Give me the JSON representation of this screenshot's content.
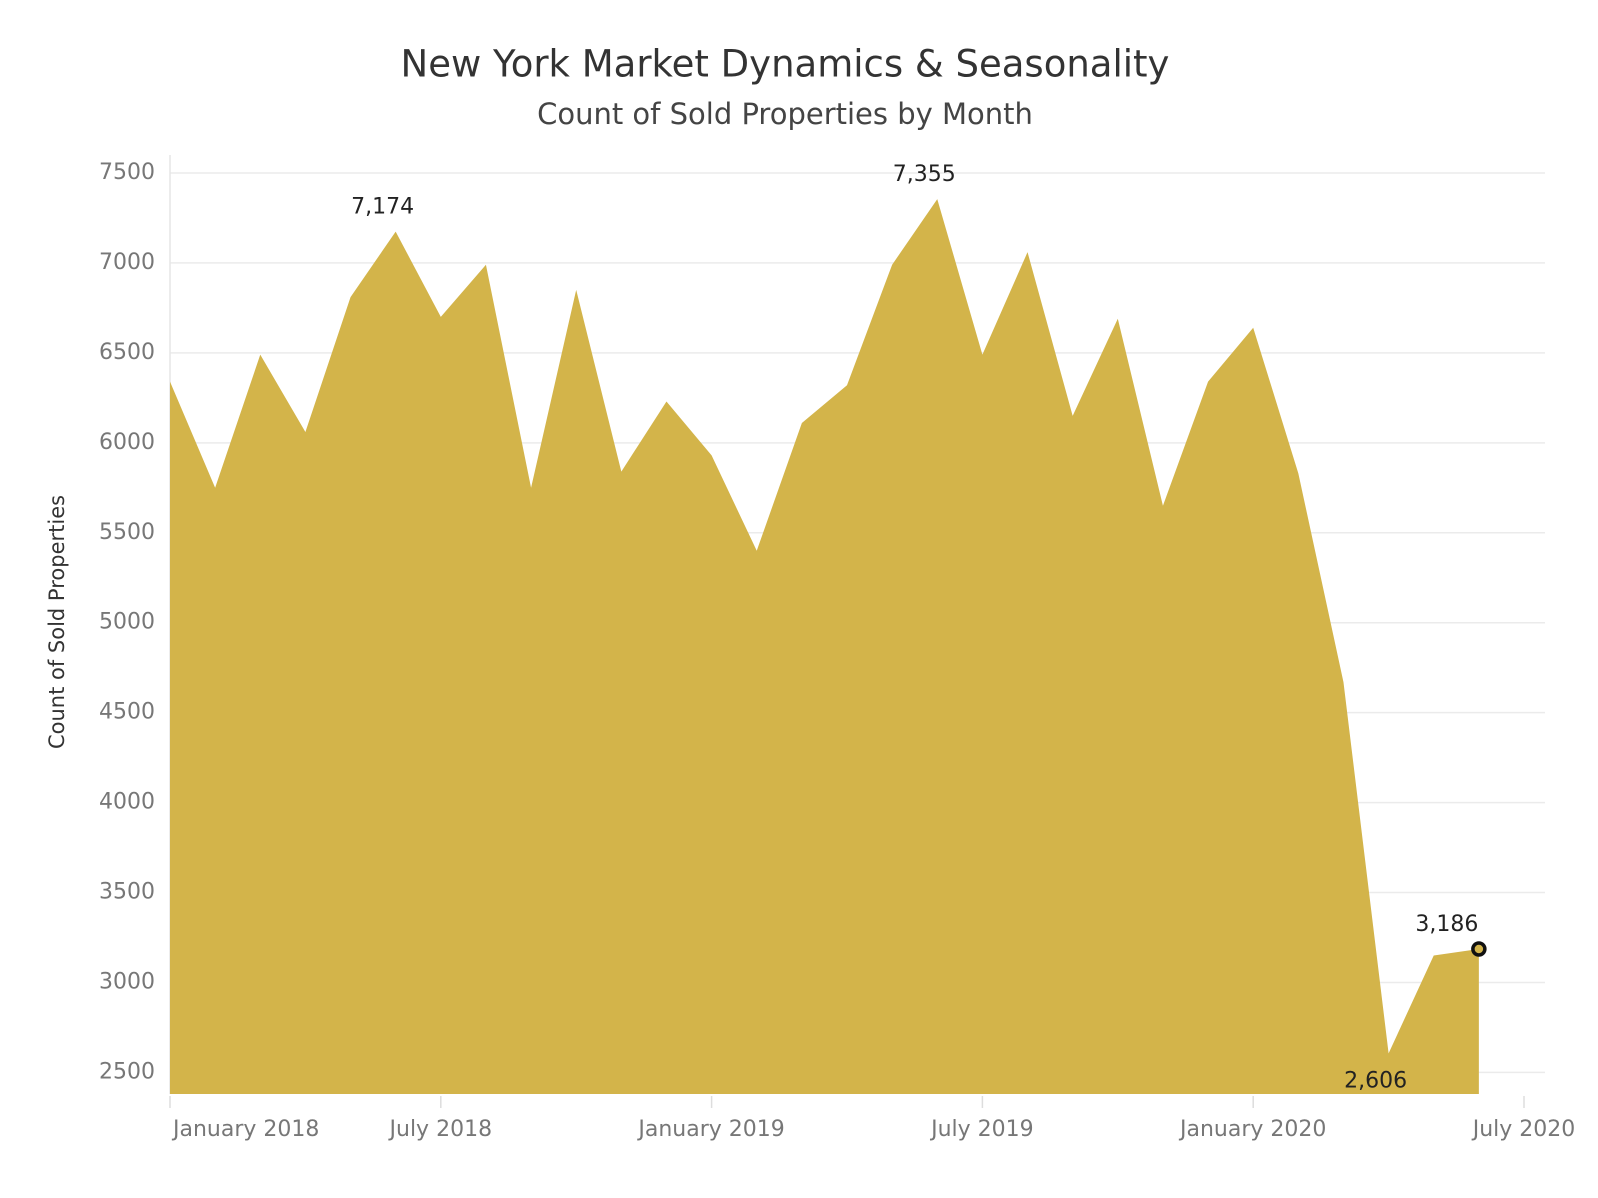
{
  "chart_data": {
    "type": "area",
    "title": "New York Market Dynamics & Seasonality",
    "subtitle": "Count of Sold Properties by Month",
    "y_label": "Count of Sold Properties",
    "x": [
      "2018-01",
      "2018-02",
      "2018-03",
      "2018-04",
      "2018-05",
      "2018-06",
      "2018-07",
      "2018-08",
      "2018-09",
      "2018-10",
      "2018-11",
      "2018-12",
      "2019-01",
      "2019-02",
      "2019-03",
      "2019-04",
      "2019-05",
      "2019-06",
      "2019-07",
      "2019-08",
      "2019-09",
      "2019-10",
      "2019-11",
      "2019-12",
      "2020-01",
      "2020-02",
      "2020-03",
      "2020-04",
      "2020-05",
      "2020-06"
    ],
    "values": [
      6340,
      5750,
      6490,
      6060,
      6810,
      7174,
      6700,
      6990,
      5750,
      6850,
      5840,
      6230,
      5930,
      5400,
      6110,
      6320,
      6990,
      7355,
      6490,
      7060,
      6150,
      6690,
      5650,
      6340,
      6640,
      5830,
      4670,
      2606,
      3150,
      3186
    ],
    "value_labels": [
      null,
      null,
      null,
      null,
      null,
      "7,174",
      null,
      null,
      null,
      null,
      null,
      null,
      null,
      null,
      null,
      null,
      null,
      "7,355",
      null,
      null,
      null,
      null,
      null,
      null,
      null,
      null,
      null,
      "2,606",
      null,
      "3,186"
    ],
    "color": "#d3b44a",
    "xlim": [
      "2018-01",
      "2020-07"
    ],
    "xticks": [
      {
        "value": "2018-01",
        "label": "January 2018"
      },
      {
        "value": "2018-07",
        "label": "July 2018"
      },
      {
        "value": "2019-01",
        "label": "January 2019"
      },
      {
        "value": "2019-07",
        "label": "July 2019"
      },
      {
        "value": "2020-01",
        "label": "January 2020"
      },
      {
        "value": "2020-07",
        "label": "July 2020"
      }
    ],
    "ylim": [
      2380,
      7600
    ],
    "yticks": [
      2500,
      3000,
      3500,
      4000,
      4500,
      5000,
      5500,
      6000,
      6500,
      7000,
      7500
    ],
    "grid": true
  }
}
